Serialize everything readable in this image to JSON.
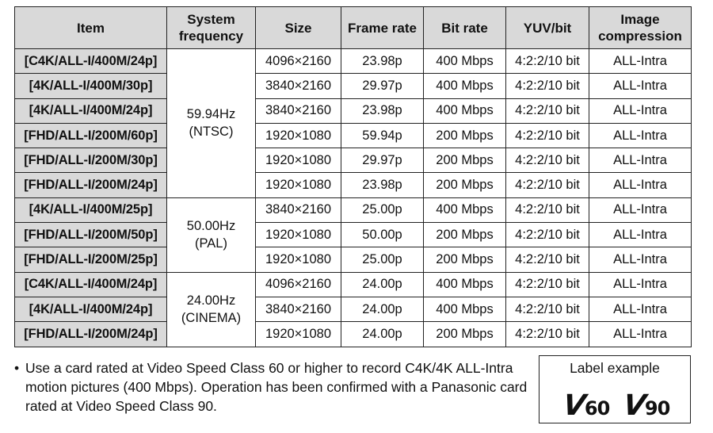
{
  "table": {
    "headers": {
      "item": "Item",
      "system_frequency_line1": "System",
      "system_frequency_line2": "frequency",
      "size": "Size",
      "frame_rate": "Frame rate",
      "bit_rate": "Bit rate",
      "yuv_bit": "YUV/bit",
      "image_compression_line1": "Image",
      "image_compression_line2": "compression"
    },
    "groups": [
      {
        "frequency": "59.94Hz",
        "system": "(NTSC)",
        "rows": [
          {
            "item": "[C4K/ALL-I/400M/24p]",
            "size": "4096×2160",
            "frame_rate": "23.98p",
            "bit_rate": "400 Mbps",
            "yuv": "4:2:2/10 bit",
            "compression": "ALL-Intra"
          },
          {
            "item": "[4K/ALL-I/400M/30p]",
            "size": "3840×2160",
            "frame_rate": "29.97p",
            "bit_rate": "400 Mbps",
            "yuv": "4:2:2/10 bit",
            "compression": "ALL-Intra"
          },
          {
            "item": "[4K/ALL-I/400M/24p]",
            "size": "3840×2160",
            "frame_rate": "23.98p",
            "bit_rate": "400 Mbps",
            "yuv": "4:2:2/10 bit",
            "compression": "ALL-Intra"
          },
          {
            "item": "[FHD/ALL-I/200M/60p]",
            "size": "1920×1080",
            "frame_rate": "59.94p",
            "bit_rate": "200 Mbps",
            "yuv": "4:2:2/10 bit",
            "compression": "ALL-Intra"
          },
          {
            "item": "[FHD/ALL-I/200M/30p]",
            "size": "1920×1080",
            "frame_rate": "29.97p",
            "bit_rate": "200 Mbps",
            "yuv": "4:2:2/10 bit",
            "compression": "ALL-Intra"
          },
          {
            "item": "[FHD/ALL-I/200M/24p]",
            "size": "1920×1080",
            "frame_rate": "23.98p",
            "bit_rate": "200 Mbps",
            "yuv": "4:2:2/10 bit",
            "compression": "ALL-Intra"
          }
        ]
      },
      {
        "frequency": "50.00Hz",
        "system": "(PAL)",
        "rows": [
          {
            "item": "[4K/ALL-I/400M/25p]",
            "size": "3840×2160",
            "frame_rate": "25.00p",
            "bit_rate": "400 Mbps",
            "yuv": "4:2:2/10 bit",
            "compression": "ALL-Intra"
          },
          {
            "item": "[FHD/ALL-I/200M/50p]",
            "size": "1920×1080",
            "frame_rate": "50.00p",
            "bit_rate": "200 Mbps",
            "yuv": "4:2:2/10 bit",
            "compression": "ALL-Intra"
          },
          {
            "item": "[FHD/ALL-I/200M/25p]",
            "size": "1920×1080",
            "frame_rate": "25.00p",
            "bit_rate": "200 Mbps",
            "yuv": "4:2:2/10 bit",
            "compression": "ALL-Intra"
          }
        ]
      },
      {
        "frequency": "24.00Hz",
        "system": "(CINEMA)",
        "rows": [
          {
            "item": "[C4K/ALL-I/400M/24p]",
            "size": "4096×2160",
            "frame_rate": "24.00p",
            "bit_rate": "400 Mbps",
            "yuv": "4:2:2/10 bit",
            "compression": "ALL-Intra"
          },
          {
            "item": "[4K/ALL-I/400M/24p]",
            "size": "3840×2160",
            "frame_rate": "24.00p",
            "bit_rate": "400 Mbps",
            "yuv": "4:2:2/10 bit",
            "compression": "ALL-Intra"
          },
          {
            "item": "[FHD/ALL-I/200M/24p]",
            "size": "1920×1080",
            "frame_rate": "24.00p",
            "bit_rate": "200 Mbps",
            "yuv": "4:2:2/10 bit",
            "compression": "ALL-Intra"
          }
        ]
      }
    ]
  },
  "note": {
    "bullet": "•",
    "text": "Use a card rated at Video Speed Class 60 or higher to record C4K/4K ALL-Intra motion pictures (400 Mbps). Operation has been confirmed with a Panasonic card rated at Video Speed Class 90."
  },
  "label_example": {
    "title": "Label example",
    "logos": [
      {
        "letter": "V",
        "number": "60",
        "icon": "video-speed-class-v60-logo"
      },
      {
        "letter": "V",
        "number": "90",
        "icon": "video-speed-class-v90-logo"
      }
    ]
  }
}
